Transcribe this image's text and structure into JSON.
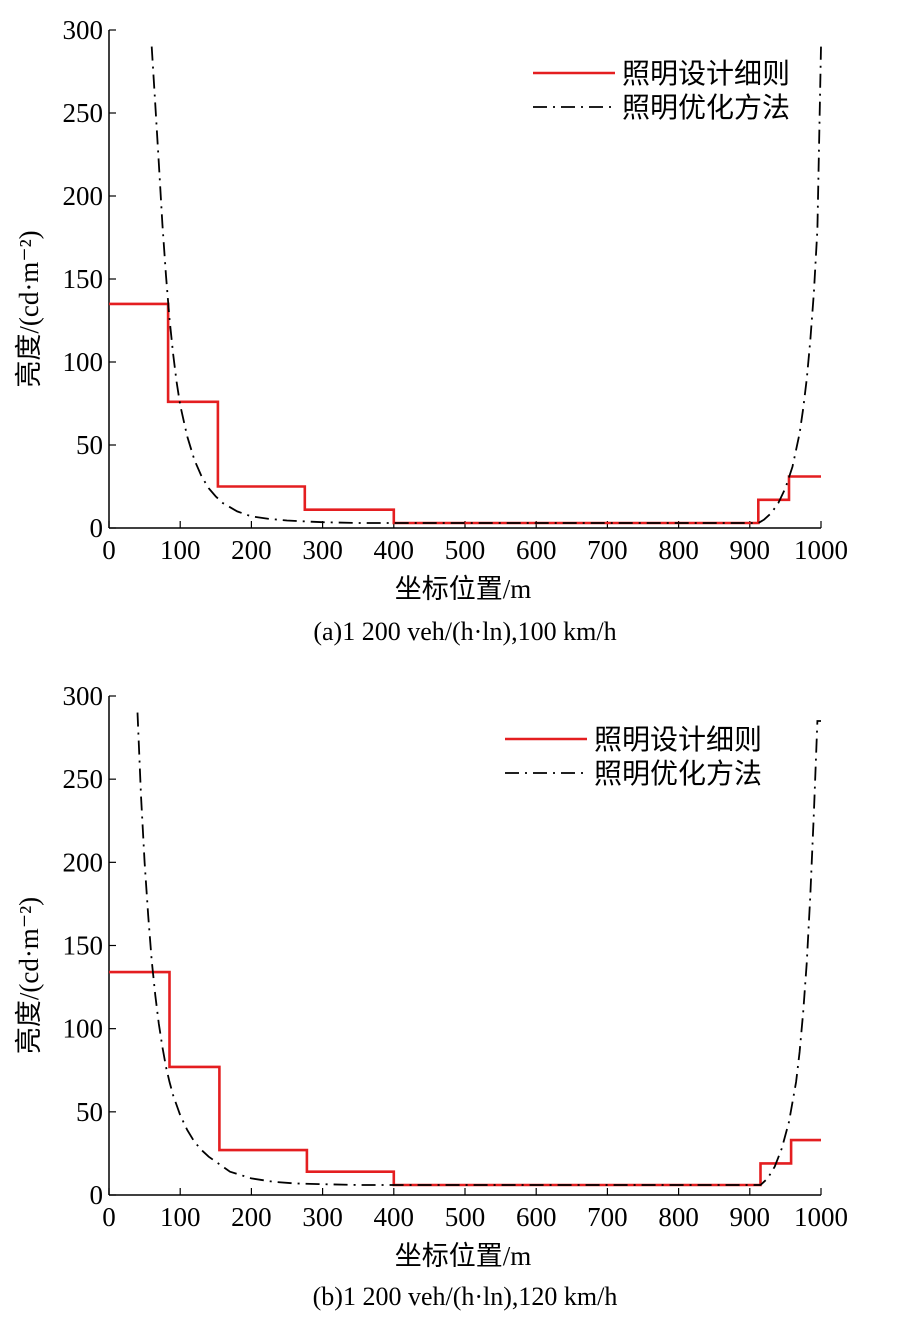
{
  "colors": {
    "design_rule": "#e41e20",
    "optimized": "#000000",
    "axis": "#000000"
  },
  "chart_data": [
    {
      "type": "line",
      "caption": "(a)1 200 veh/(h·ln),100 km/h",
      "xlabel": "坐标位置/m",
      "ylabel": "亮度/(cd·m⁻²)",
      "xlim": [
        0,
        1000
      ],
      "ylim": [
        0,
        300
      ],
      "xticks": [
        0,
        100,
        200,
        300,
        400,
        500,
        600,
        700,
        800,
        900,
        1000
      ],
      "yticks": [
        0,
        50,
        100,
        150,
        200,
        250,
        300
      ],
      "grid": false,
      "legend_position": "top-right",
      "series": [
        {
          "name": "照明设计细则",
          "style": "solid-red",
          "x": [
            0,
            83,
            83,
            153,
            153,
            275,
            275,
            400,
            400,
            912,
            912,
            955,
            955,
            1000
          ],
          "y": [
            135,
            135,
            76,
            76,
            25,
            25,
            11,
            11,
            3,
            3,
            17,
            17,
            31,
            31
          ]
        },
        {
          "name": "照明优化方法",
          "style": "dash-dot-black",
          "x": [
            60,
            65,
            70,
            75,
            80,
            85,
            90,
            95,
            100,
            110,
            120,
            130,
            140,
            150,
            160,
            180,
            200,
            225,
            250,
            275,
            300,
            350,
            400,
            500,
            600,
            700,
            800,
            900,
            912,
            920,
            930,
            940,
            950,
            960,
            970,
            975,
            980,
            985,
            990,
            995,
            1000
          ],
          "y": [
            290,
            255,
            220,
            183,
            152,
            126,
            105,
            88,
            74,
            55,
            41,
            31,
            24,
            19,
            15,
            10,
            7,
            5.5,
            4.5,
            4,
            3.5,
            3,
            3,
            3,
            3,
            3,
            3,
            3,
            3,
            5,
            9,
            15,
            24,
            37,
            57,
            72,
            90,
            113,
            142,
            180,
            290
          ]
        }
      ]
    },
    {
      "type": "line",
      "caption": "(b)1 200 veh/(h·ln),120 km/h",
      "xlabel": "坐标位置/m",
      "ylabel": "亮度/(cd·m⁻²)",
      "xlim": [
        0,
        1000
      ],
      "ylim": [
        0,
        300
      ],
      "xticks": [
        0,
        100,
        200,
        300,
        400,
        500,
        600,
        700,
        800,
        900,
        1000
      ],
      "yticks": [
        0,
        50,
        100,
        150,
        200,
        250,
        300
      ],
      "grid": false,
      "legend_position": "top-right",
      "series": [
        {
          "name": "照明设计细则",
          "style": "solid-red",
          "x": [
            0,
            85,
            85,
            155,
            155,
            278,
            278,
            400,
            400,
            915,
            915,
            958,
            958,
            1000
          ],
          "y": [
            134,
            134,
            77,
            77,
            27,
            27,
            14,
            14,
            6,
            6,
            19,
            19,
            33,
            33
          ]
        },
        {
          "name": "照明优化方法",
          "style": "dash-dot-black",
          "x": [
            40,
            45,
            50,
            55,
            60,
            65,
            70,
            75,
            80,
            85,
            90,
            100,
            110,
            120,
            130,
            140,
            150,
            170,
            200,
            230,
            260,
            300,
            350,
            400,
            500,
            600,
            700,
            800,
            900,
            915,
            925,
            935,
            945,
            955,
            965,
            970,
            975,
            980,
            985,
            990,
            995,
            1000
          ],
          "y": [
            290,
            240,
            200,
            168,
            141,
            120,
            103,
            89,
            77,
            68,
            60,
            48,
            39,
            32,
            27,
            23,
            20,
            14,
            10,
            8,
            7,
            6.5,
            6,
            6,
            6,
            6,
            6,
            6,
            6,
            6,
            10,
            17,
            28,
            44,
            68,
            86,
            110,
            140,
            180,
            230,
            285,
            285
          ]
        }
      ]
    }
  ]
}
